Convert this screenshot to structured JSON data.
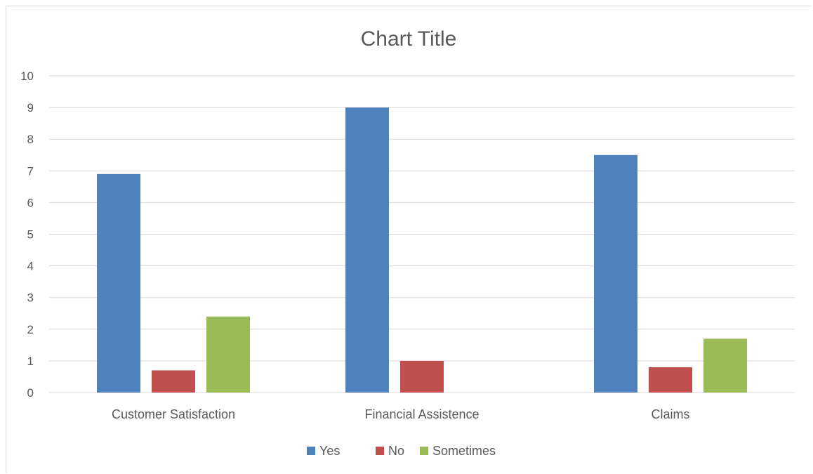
{
  "chart_data": {
    "type": "bar",
    "title": "Chart Title",
    "xlabel": "",
    "ylabel": "",
    "categories": [
      "Customer Satisfaction",
      "Financial Assistence",
      "Claims"
    ],
    "series": [
      {
        "name": "Yes",
        "color": "#4f81bd",
        "values": [
          6.9,
          9.0,
          7.5
        ]
      },
      {
        "name": "No",
        "color": "#c0504d",
        "values": [
          0.7,
          1.0,
          0.8
        ]
      },
      {
        "name": "Sometimes",
        "color": "#9bbb59",
        "values": [
          2.4,
          0,
          1.7
        ]
      }
    ],
    "ylim": [
      0,
      10
    ],
    "yticks": [
      "0",
      "1",
      "2",
      "3",
      "4",
      "5",
      "6",
      "7",
      "8",
      "9",
      "10"
    ],
    "grid": true,
    "legend": "bottom"
  }
}
